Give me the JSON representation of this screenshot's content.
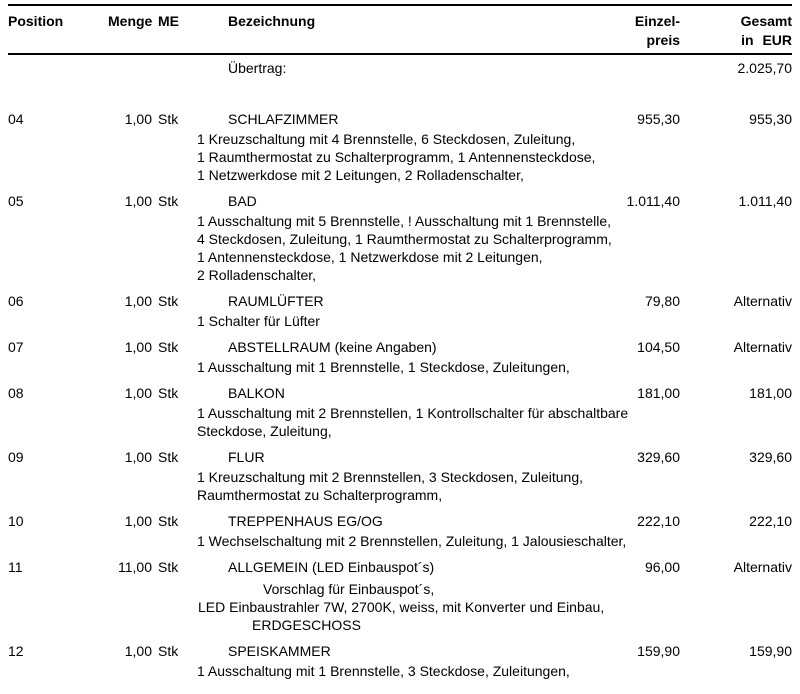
{
  "header": {
    "position": "Position",
    "menge": "Menge",
    "me": "ME",
    "bezeichnung": "Bezeichnung",
    "einzelpreis_line1": "Einzel-",
    "einzelpreis_line2": "preis",
    "gesamt_line1": "Gesamt",
    "gesamt_line2": "in EUR"
  },
  "carryover": {
    "label": "Übertrag:",
    "total": "2.025,70"
  },
  "rows": [
    {
      "position": "04",
      "quantity": "1,00",
      "unit": "Stk",
      "title": "SCHLAFZIMMER",
      "unit_price": "955,30",
      "total": "955,30",
      "description": [
        "1 Kreuzschaltung mit 4 Brennstelle, 6 Steckdosen, Zuleitung,",
        "1 Raumthermostat zu Schalterprogramm, 1 Antennensteckdose,",
        "1 Netzwerkdose mit 2 Leitungen, 2 Rolladenschalter,"
      ]
    },
    {
      "position": "05",
      "quantity": "1,00",
      "unit": "Stk",
      "title": "BAD",
      "unit_price": "1.011,40",
      "total": "1.011,40",
      "description": [
        "1 Ausschaltung mit 5 Brennstelle, ! Ausschaltung mit 1 Brennstelle,",
        "4 Steckdosen, Zuleitung, 1 Raumthermostat zu Schalterprogramm,",
        "1 Antennensteckdose, 1 Netzwerkdose mit 2 Leitungen,",
        "2 Rolladenschalter,"
      ]
    },
    {
      "position": "06",
      "quantity": "1,00",
      "unit": "Stk",
      "title": "RAUMLÜFTER",
      "unit_price": "79,80",
      "total": "Alternativ",
      "description": [
        "1 Schalter für Lüfter"
      ]
    },
    {
      "position": "07",
      "quantity": "1,00",
      "unit": "Stk",
      "title": "ABSTELLRAUM (keine Angaben)",
      "unit_price": "104,50",
      "total": "Alternativ",
      "description": [
        "1 Ausschaltung mit 1 Brennstelle, 1 Steckdose, Zuleitungen,"
      ]
    },
    {
      "position": "08",
      "quantity": "1,00",
      "unit": "Stk",
      "title": "BALKON",
      "unit_price": "181,00",
      "total": "181,00",
      "description": [
        "1 Ausschaltung mit 2 Brennstellen, 1 Kontrollschalter für abschaltbare",
        "Steckdose, Zuleitung,"
      ]
    },
    {
      "position": "09",
      "quantity": "1,00",
      "unit": "Stk",
      "title": "FLUR",
      "unit_price": "329,60",
      "total": "329,60",
      "description": [
        "1 Kreuzschaltung mit 2 Brennstellen, 3 Steckdosen, Zuleitung,",
        "Raumthermostat zu Schalterprogramm,"
      ]
    },
    {
      "position": "10",
      "quantity": "1,00",
      "unit": "Stk",
      "title": "TREPPENHAUS EG/OG",
      "unit_price": "222,10",
      "total": "222,10",
      "description": [
        "1 Wechselschaltung mit 2 Brennstellen, Zuleitung, 1 Jalousieschalter,"
      ]
    },
    {
      "position": "11",
      "quantity": "11,00",
      "unit": "Stk",
      "title": "ALLGEMEIN (LED Einbauspot´s)",
      "unit_price": "96,00",
      "total": "Alternativ",
      "description": [
        "Vorschlag für Einbauspot´s,",
        "LED Einbaustrahler 7W, 2700K, weiss, mit Konverter und Einbau,",
        "ERDGESCHOSS"
      ]
    },
    {
      "position": "12",
      "quantity": "1,00",
      "unit": "Stk",
      "title": "SPEISKAMMER",
      "unit_price": "159,90",
      "total": "159,90",
      "description": [
        "1 Ausschaltung mit 1 Brennstelle, 3 Steckdose, Zuleitungen,"
      ]
    }
  ]
}
